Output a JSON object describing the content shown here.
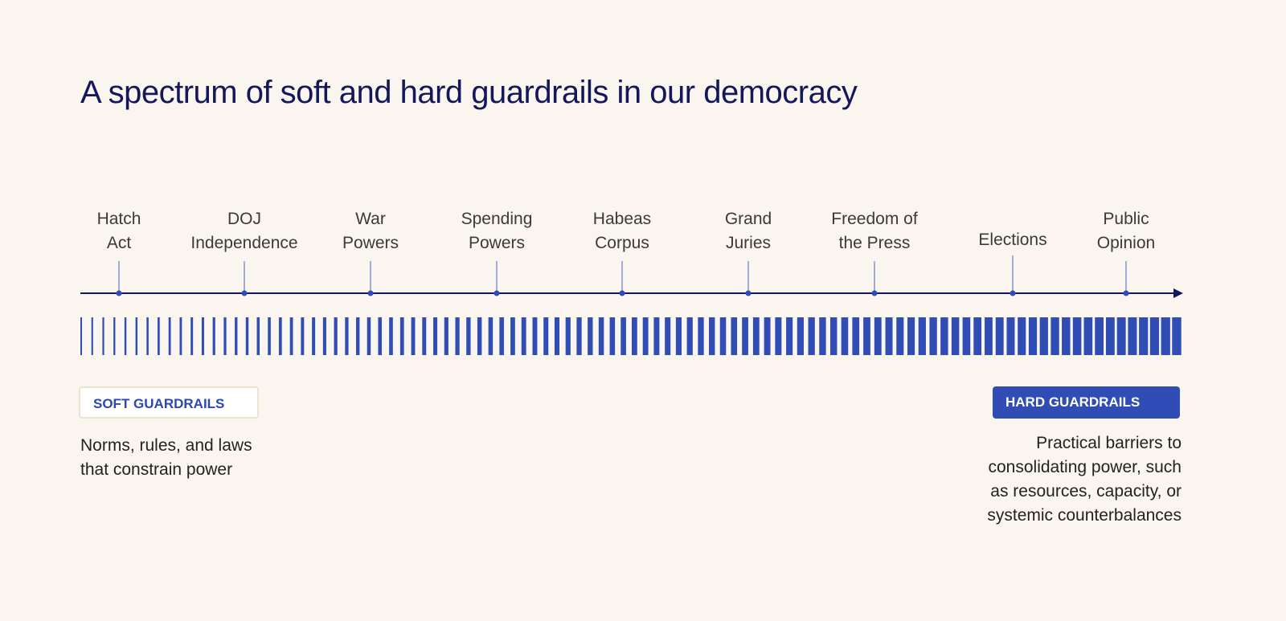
{
  "title": "A spectrum of soft and hard guardrails in our democracy",
  "items": [
    {
      "lines": [
        "Hatch",
        "Act"
      ]
    },
    {
      "lines": [
        "DOJ",
        "Independence"
      ]
    },
    {
      "lines": [
        "War",
        "Powers"
      ]
    },
    {
      "lines": [
        "Spending",
        "Powers"
      ]
    },
    {
      "lines": [
        "Habeas",
        "Corpus"
      ]
    },
    {
      "lines": [
        "Grand",
        "Juries"
      ]
    },
    {
      "lines": [
        "Freedom of",
        "the Press"
      ]
    },
    {
      "lines": [
        "Elections"
      ]
    },
    {
      "lines": [
        "Public",
        "Opinion"
      ]
    }
  ],
  "soft": {
    "label": "SOFT GUARDRAILS",
    "desc": [
      "Norms, rules, and laws",
      "that constrain power"
    ]
  },
  "hard": {
    "label": "HARD GUARDRAILS",
    "desc": [
      "Practical barriers to",
      "consolidating power, such",
      "as resources, capacity, or",
      "systemic counterbalances"
    ]
  },
  "colors": {
    "accent": "#2f4db5",
    "axis": "#14185a",
    "background": "#faf5ee"
  },
  "bar_count": 100
}
